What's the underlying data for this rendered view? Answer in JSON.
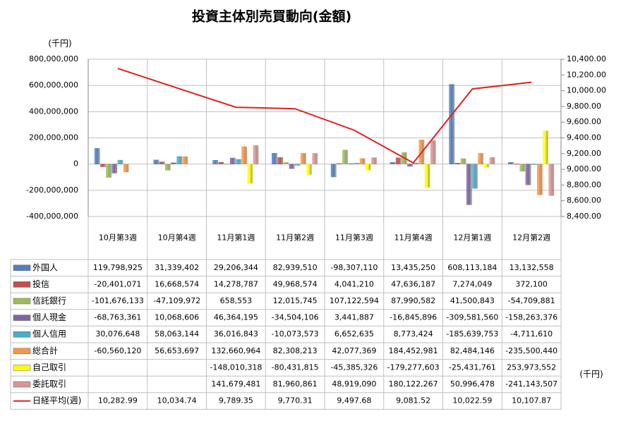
{
  "chart_data": {
    "type": "bar",
    "title": "投資主体別売買動向(金額)",
    "y_unit": "(千円)",
    "table_unit": "(千円)",
    "categories": [
      "10月第3週",
      "10月第4週",
      "11月第1週",
      "11月第2週",
      "11月第3週",
      "11月第4週",
      "12月第1週",
      "12月第2週"
    ],
    "ylim": [
      -400000000,
      800000000
    ],
    "yticks": [
      {
        "value": -400000000,
        "label": "-400,000,000"
      },
      {
        "value": -200000000,
        "label": "-200,000,000"
      },
      0,
      {
        "value": 200000000,
        "label": "200,000,000"
      },
      {
        "value": 400000000,
        "label": "400,000,000"
      },
      {
        "value": 600000000,
        "label": "600,000,000"
      },
      {
        "value": 800000000,
        "label": "800,000,000"
      }
    ],
    "y2lim": [
      8400,
      10400
    ],
    "y2ticks": [
      {
        "value": 8400,
        "label": "8,400.00"
      },
      {
        "value": 8600,
        "label": "8,600.00"
      },
      {
        "value": 8800,
        "label": "8,800.00"
      },
      {
        "value": 9000,
        "label": "9,000.00"
      },
      {
        "value": 9200,
        "label": "9,200.00"
      },
      {
        "value": 9400,
        "label": "9,400.00"
      },
      {
        "value": 9600,
        "label": "9,600.00"
      },
      {
        "value": 9800,
        "label": "9,800.00"
      },
      {
        "value": 10000,
        "label": "10,000.00"
      },
      {
        "value": 10200,
        "label": "10,200.00"
      },
      {
        "value": 10400,
        "label": "10,400.00"
      }
    ],
    "grid": true,
    "series": [
      {
        "name": "外国人",
        "color": "#4f81bd",
        "values": [
          119798925,
          31339402,
          29206344,
          82939510,
          -98307110,
          13435250,
          608113184,
          13132558
        ],
        "value_labels": [
          "119,798,925",
          "31,339,402",
          "29,206,344",
          "82,939,510",
          "-98,307,110",
          "13,435,250",
          "608,113,184",
          "13,132,558"
        ]
      },
      {
        "name": "投信",
        "color": "#c0504d",
        "values": [
          -20401071,
          16668574,
          14278787,
          49968574,
          4041210,
          47636187,
          7274049,
          372100
        ],
        "value_labels": [
          "-20,401,071",
          "16,668,574",
          "14,278,787",
          "49,968,574",
          "4,041,210",
          "47,636,187",
          "7,274,049",
          "372,100"
        ]
      },
      {
        "name": "信託銀行",
        "color": "#9bbb59",
        "values": [
          -101676133,
          -47109972,
          658553,
          12015745,
          107122594,
          87990582,
          41500843,
          -54709881
        ],
        "value_labels": [
          "-101,676,133",
          "-47,109,972",
          "658,553",
          "12,015,745",
          "107,122,594",
          "87,990,582",
          "41,500,843",
          "-54,709,881"
        ]
      },
      {
        "name": "個人現金",
        "color": "#8064a2",
        "values": [
          -68763361,
          10068606,
          46364195,
          -34504106,
          3441887,
          -16845896,
          -309581560,
          -158263376
        ],
        "value_labels": [
          "-68,763,361",
          "10,068,606",
          "46,364,195",
          "-34,504,106",
          "3,441,887",
          "-16,845,896",
          "-309,581,560",
          "-158,263,376"
        ]
      },
      {
        "name": "個人信用",
        "color": "#4bacc6",
        "values": [
          30076648,
          58063144,
          36016843,
          -10073573,
          6652635,
          8773424,
          -185639753,
          -4711610
        ],
        "value_labels": [
          "30,076,648",
          "58,063,144",
          "36,016,843",
          "-10,073,573",
          "6,652,635",
          "8,773,424",
          "-185,639,753",
          "-4,711,610"
        ]
      },
      {
        "name": "総合計",
        "color": "#f79646",
        "values": [
          -60560120,
          56653697,
          132660964,
          82308213,
          42077369,
          184452981,
          82484146,
          -235500440
        ],
        "value_labels": [
          "-60,560,120",
          "56,653,697",
          "132,660,964",
          "82,308,213",
          "42,077,369",
          "184,452,981",
          "82,484,146",
          "-235,500,440"
        ]
      },
      {
        "name": "自己取引",
        "color": "#ffff00",
        "values": [
          null,
          null,
          -148010318,
          -80431815,
          -45385326,
          -179277603,
          -25431761,
          253973552
        ],
        "value_labels": [
          null,
          null,
          "-148,010,318",
          "-80,431,815",
          "-45,385,326",
          "-179,277,603",
          "-25,431,761",
          "253,973,552"
        ]
      },
      {
        "name": "委託取引",
        "color": "#d99694",
        "values": [
          null,
          null,
          141679481,
          81960861,
          48919090,
          180122267,
          50996478,
          -241143507
        ],
        "value_labels": [
          null,
          null,
          "141,679,481",
          "81,960,861",
          "48,919,090",
          "180,122,267",
          "50,996,478",
          "-241,143,507"
        ]
      },
      {
        "name": "日経平均(週)",
        "color": "#e3201b",
        "type": "line",
        "axis": "y2",
        "values": [
          10282.99,
          10034.74,
          9789.35,
          9770.31,
          9497.68,
          9081.52,
          10022.59,
          10107.87
        ],
        "value_labels": [
          "10,282.99",
          "10,034.74",
          "9,789.35",
          "9,770.31",
          "9,497.68",
          "9,081.52",
          "10,022.59",
          "10,107.87"
        ]
      }
    ]
  }
}
